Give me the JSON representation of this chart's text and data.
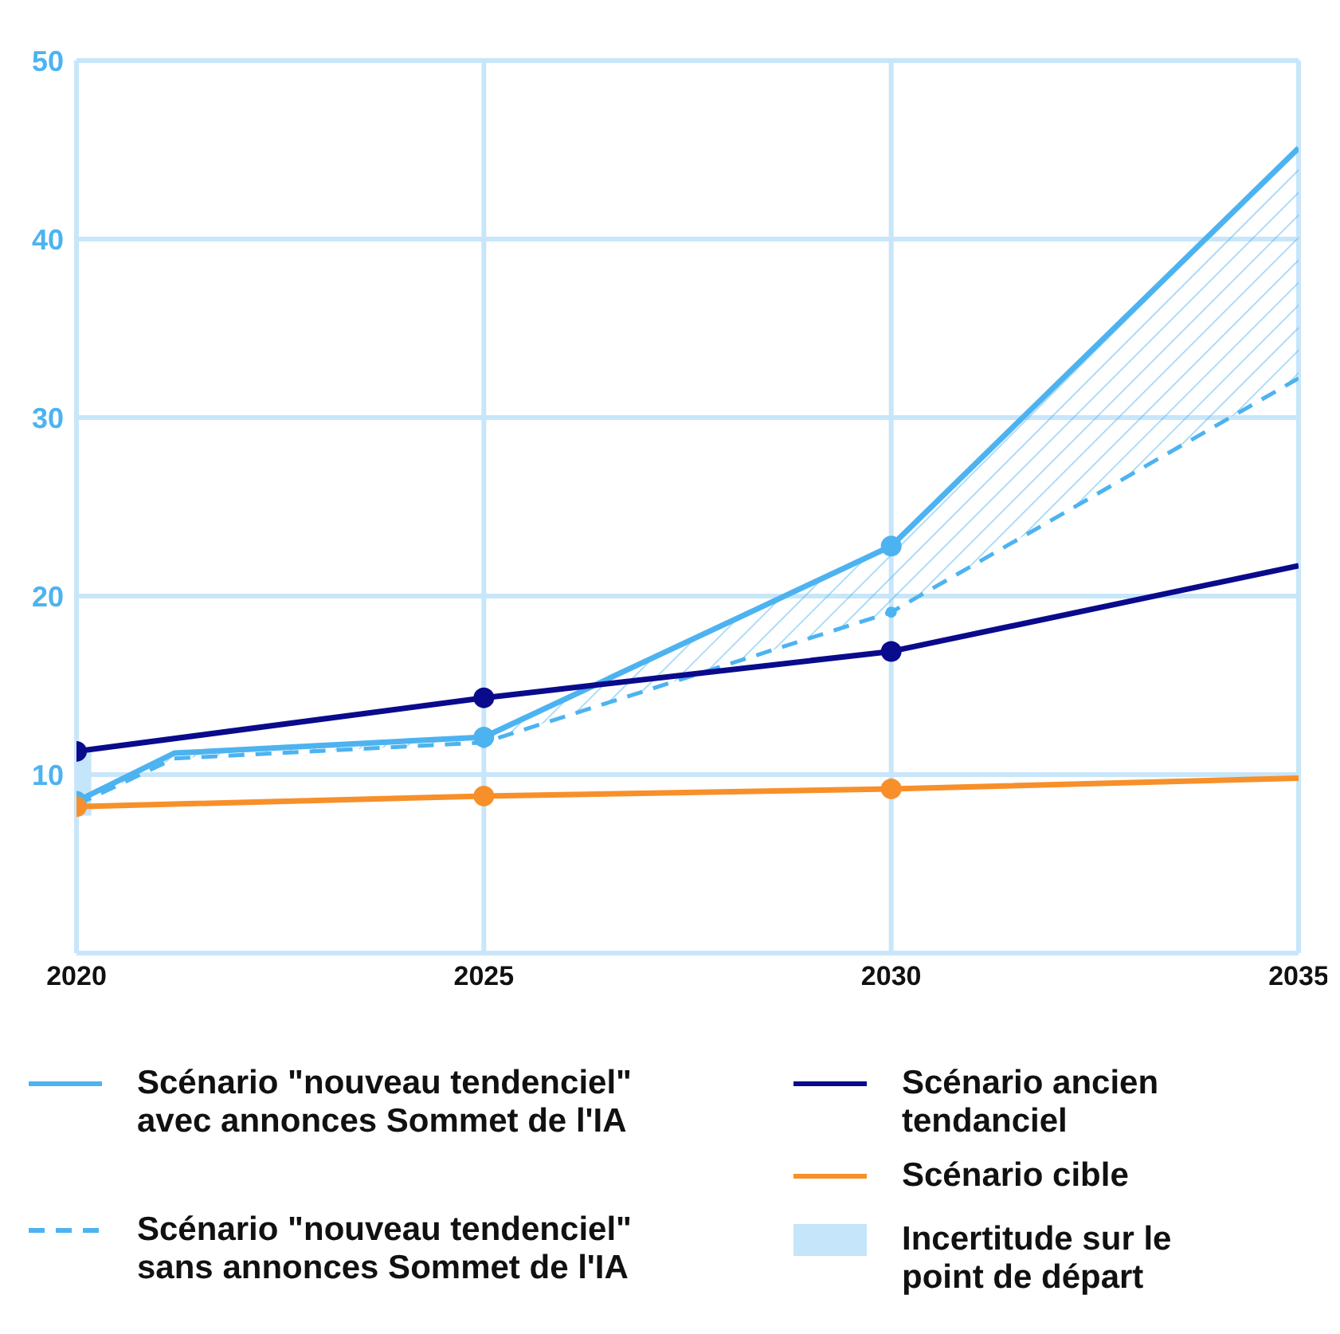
{
  "chart_data": {
    "type": "line",
    "xlim": [
      2020,
      2035
    ],
    "xticks": [
      2020,
      2025,
      2030,
      2035
    ],
    "ylim": [
      0,
      50
    ],
    "yticks": [
      {
        "value": 0,
        "label": null
      },
      10,
      20,
      30,
      40,
      50
    ],
    "grid": true,
    "legend": "bottom",
    "marker": "circle",
    "series": [
      {
        "name": "Scénario \"nouveau tendenciel\" avec annonces Sommet de l'IA",
        "color": "#4db3f0",
        "x": [
          2020,
          2021.2,
          2025,
          2030,
          2035
        ],
        "values": [
          8.5,
          11.2,
          12.1,
          22.8,
          45.1
        ],
        "lower": [
          8.3,
          10.9,
          11.8,
          19.1,
          32.2
        ],
        "upper": [
          8.5,
          11.2,
          12.1,
          22.8,
          45.1
        ]
      },
      {
        "name": "Scénario \"nouveau tendenciel\" sans annonces Sommet de l'IA",
        "color": "#4db3f0",
        "line_style": "dashed",
        "x": [
          2020,
          2021.2,
          2025,
          2030,
          2035
        ],
        "values": [
          8.3,
          10.9,
          11.8,
          19.1,
          32.2
        ]
      },
      {
        "name": "Scénario ancien tendanciel",
        "color": "#0a0a8c",
        "x": [
          2020,
          2025,
          2030,
          2035
        ],
        "values": [
          11.3,
          14.3,
          16.9,
          21.7
        ]
      },
      {
        "name": "Scénario cible",
        "color": "#f7902a",
        "x": [
          2020,
          2025,
          2030,
          2035
        ],
        "values": [
          8.2,
          8.8,
          9.2,
          9.8
        ]
      },
      {
        "name": "Incertitude sur le point de départ",
        "type": "bar",
        "color": "#c5e5fa",
        "x": [
          2020
        ],
        "base": [
          7.7
        ],
        "values": [
          3.7
        ]
      }
    ]
  }
}
